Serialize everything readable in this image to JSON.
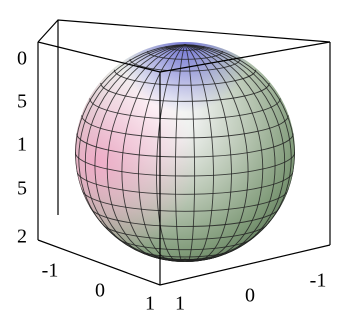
{
  "z_axis_labels": [
    "0",
    "5",
    "1",
    "5",
    "2"
  ],
  "x_axis_labels": [
    "-1",
    "0",
    "1"
  ],
  "y_axis_labels": [
    "1",
    "0",
    "-1"
  ]
}
